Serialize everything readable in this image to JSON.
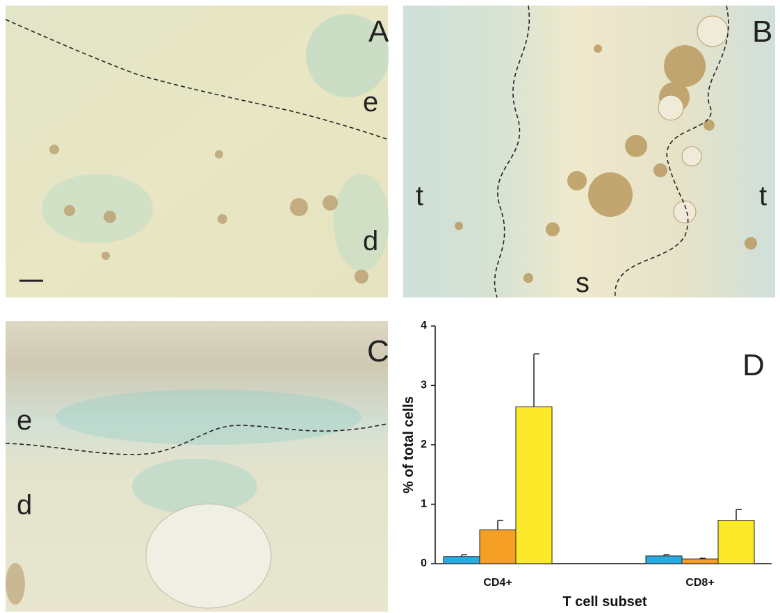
{
  "panels": [
    {
      "letter": "A",
      "labels": [
        "e",
        "d"
      ]
    },
    {
      "letter": "B",
      "labels": [
        "t",
        "t",
        "s"
      ]
    },
    {
      "letter": "C",
      "labels": [
        "e",
        "d"
      ]
    }
  ],
  "chart_data": {
    "type": "bar",
    "panel_label": "D",
    "categories": [
      "CD4+",
      "CD8+"
    ],
    "series": [
      {
        "color": "#29abe2",
        "values": [
          0.12,
          0.13
        ],
        "errors": [
          0.03,
          0.02
        ]
      },
      {
        "color": "#f5a025",
        "values": [
          0.57,
          0.08
        ],
        "errors": [
          0.16,
          0.01
        ]
      },
      {
        "color": "#fcea2a",
        "values": [
          2.64,
          0.73
        ],
        "errors": [
          0.89,
          0.18
        ]
      }
    ],
    "y_label": "% of total cells",
    "x_label": "T cell subset",
    "ylim": [
      0,
      4
    ],
    "yticks": [
      0,
      1,
      2,
      3,
      4
    ]
  }
}
